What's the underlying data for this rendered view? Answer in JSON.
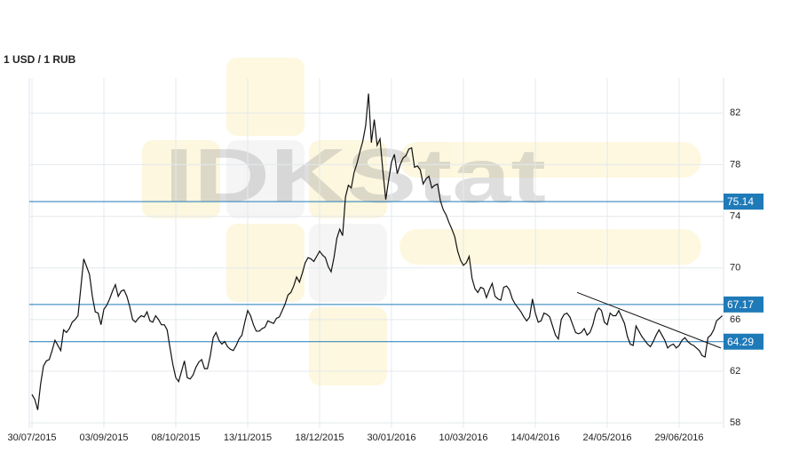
{
  "chart_data": {
    "type": "line",
    "title": "1 USD / 1 RUB",
    "watermark": "IDKStat",
    "categories": [
      "30/07/2015",
      null,
      null,
      null,
      null,
      null,
      null,
      null,
      null,
      null,
      null,
      null,
      null,
      null,
      null,
      null,
      null,
      null,
      null,
      null,
      null,
      null,
      null,
      null,
      null,
      "03/09/2015",
      null,
      null,
      null,
      null,
      null,
      null,
      null,
      null,
      null,
      null,
      null,
      null,
      null,
      null,
      null,
      null,
      null,
      null,
      null,
      null,
      null,
      null,
      null,
      null,
      "08/10/2015",
      null,
      null,
      null,
      null,
      null,
      null,
      null,
      null,
      null,
      null,
      null,
      null,
      null,
      null,
      null,
      null,
      null,
      null,
      null,
      null,
      null,
      null,
      null,
      null,
      "13/11/2015",
      null,
      null,
      null,
      null,
      null,
      null,
      null,
      null,
      null,
      null,
      null,
      null,
      null,
      null,
      null,
      null,
      null,
      null,
      null,
      null,
      null,
      null,
      null,
      null,
      "18/12/2015",
      null,
      null,
      null,
      null,
      null,
      null,
      null,
      null,
      null,
      null,
      null,
      null,
      null,
      null,
      null,
      null,
      null,
      null,
      null,
      null,
      null,
      null,
      null,
      null,
      "30/01/2016",
      null,
      null,
      null,
      null,
      null,
      null,
      null,
      null,
      null,
      null,
      null,
      null,
      null,
      null,
      null,
      null,
      null,
      null,
      null,
      null,
      null,
      null,
      null,
      null,
      "10/03/2016",
      null,
      null,
      null,
      null,
      null,
      null,
      null,
      null,
      null,
      null,
      null,
      null,
      null,
      null,
      null,
      null,
      null,
      null,
      null,
      null,
      null,
      null,
      null,
      null,
      "14/04/2016",
      null,
      null,
      null,
      null,
      null,
      null,
      null,
      null,
      null,
      null,
      null,
      null,
      null,
      null,
      null,
      null,
      null,
      null,
      null,
      null,
      null,
      null,
      null,
      null,
      "24/05/2016",
      null,
      null,
      null,
      null,
      null,
      null,
      null,
      null,
      null,
      null,
      null,
      null,
      null,
      null,
      null,
      null,
      null,
      null,
      null,
      null,
      null,
      null,
      null,
      null,
      "29/06/2016",
      null,
      null,
      null,
      null,
      null,
      null,
      null,
      null,
      null,
      null,
      null,
      null,
      null,
      null,
      null
    ],
    "series": [
      {
        "color": "#111111",
        "values": [
          60.2,
          59.8,
          59.0,
          61.0,
          62.4,
          62.8,
          62.9,
          63.6,
          64.4,
          64.0,
          63.6,
          65.2,
          65.0,
          65.3,
          65.8,
          66.0,
          66.3,
          68.5,
          70.7,
          70.1,
          69.5,
          67.8,
          66.6,
          66.5,
          65.6,
          66.8,
          67.1,
          67.6,
          68.2,
          68.7,
          67.8,
          68.2,
          68.3,
          67.8,
          67.0,
          66.0,
          65.8,
          66.1,
          66.3,
          66.2,
          66.6,
          65.9,
          65.8,
          66.3,
          66.0,
          65.6,
          65.6,
          65.2,
          63.8,
          62.5,
          61.5,
          61.2,
          62.0,
          62.8,
          61.5,
          61.4,
          61.7,
          62.3,
          62.7,
          62.9,
          62.2,
          62.2,
          63.2,
          64.6,
          65.0,
          64.4,
          64.1,
          64.3,
          63.9,
          63.7,
          63.6,
          64.0,
          64.5,
          64.8,
          65.8,
          66.7,
          66.3,
          65.6,
          65.1,
          65.1,
          65.3,
          65.4,
          65.9,
          65.8,
          65.7,
          66.1,
          66.2,
          66.7,
          67.2,
          67.9,
          68.1,
          68.6,
          69.3,
          68.9,
          69.6,
          70.4,
          70.8,
          70.7,
          70.5,
          70.9,
          71.3,
          71.0,
          70.8,
          70.1,
          69.7,
          70.8,
          72.3,
          73.0,
          72.5,
          75.5,
          76.4,
          76.2,
          77.4,
          78.1,
          79.0,
          79.8,
          81.0,
          83.5,
          79.7,
          81.5,
          79.5,
          80.0,
          77.5,
          75.3,
          76.8,
          78.2,
          78.8,
          77.3,
          78.0,
          78.5,
          78.7,
          79.2,
          79.3,
          77.8,
          77.9,
          77.6,
          76.5,
          76.9,
          77.1,
          76.2,
          76.4,
          76.5,
          75.2,
          74.5,
          74.1,
          73.5,
          73.0,
          72.4,
          71.3,
          70.6,
          70.2,
          70.4,
          70.9,
          69.2,
          68.4,
          68.1,
          68.5,
          68.4,
          67.7,
          68.3,
          68.8,
          67.8,
          67.6,
          67.5,
          68.5,
          68.6,
          68.3,
          67.6,
          67.2,
          66.9,
          66.6,
          66.2,
          65.9,
          66.2,
          67.6,
          66.5,
          65.8,
          65.9,
          66.5,
          66.4,
          66.2,
          65.5,
          64.8,
          64.5,
          66.0,
          66.4,
          66.5,
          66.2,
          65.6,
          65.0,
          64.9,
          65.0,
          65.3,
          64.8,
          65.0,
          65.6,
          66.5,
          66.9,
          66.7,
          65.8,
          65.6,
          66.5,
          66.3,
          66.3,
          66.7,
          66.2,
          65.7,
          64.7,
          64.1,
          64.0,
          65.5,
          65.1,
          64.7,
          64.4,
          64.1,
          63.9,
          64.3,
          64.8,
          65.2,
          64.8,
          64.4,
          63.8,
          64.0,
          64.1,
          63.8,
          64.0,
          64.4,
          64.6,
          64.3,
          64.1,
          64.0,
          63.8,
          63.6,
          63.2,
          63.1,
          64.6,
          64.8,
          65.2,
          65.9,
          66.1,
          66.3
        ]
      }
    ],
    "ylim": [
      57.6,
      84.7
    ],
    "yticks": [
      58,
      62,
      66,
      70,
      74,
      78,
      82
    ],
    "grid": true,
    "hlines": [
      75.14,
      67.17,
      64.29
    ],
    "hline_color": "#1f7ab8",
    "trendline": {
      "x": [
        189.5,
        239.5
      ],
      "y": [
        68.1,
        63.8
      ],
      "color": "#111111"
    }
  }
}
